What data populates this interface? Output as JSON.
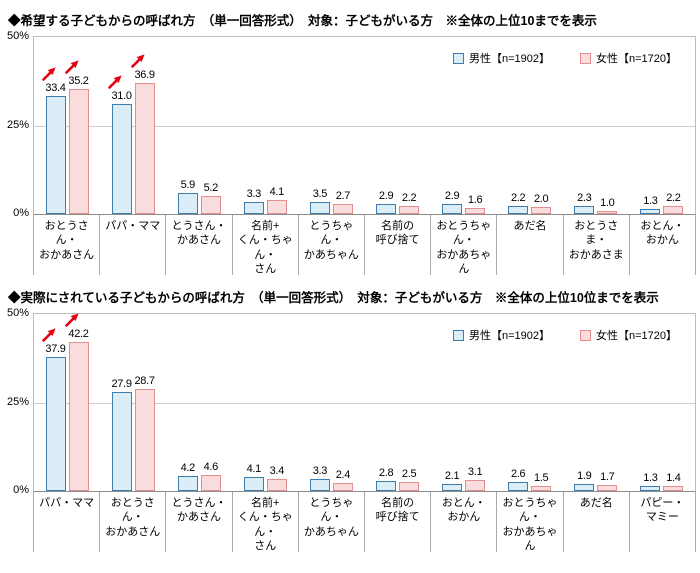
{
  "y_ticks": [
    "50%",
    "25%",
    "0%"
  ],
  "legend": {
    "male": "男性【n=1902】",
    "female": "女性【n=1720】"
  },
  "colors": {
    "male_fill": "#dbeef7",
    "male_border": "#3f7cac",
    "female_fill": "#fadcdd",
    "female_border": "#e08e90",
    "arrow": "#e60012",
    "grid": "#cdcdcd"
  },
  "chart_data": [
    {
      "type": "bar",
      "title": "◆希望する子どもからの呼ばれ方　（単一回答形式）　対象：子どもがいる方　※全体の上位10までを表示",
      "ylim": [
        0,
        50
      ],
      "grid": true,
      "legend_position": "top-right",
      "categories": [
        [
          "おとうさん・",
          "おかあさん"
        ],
        [
          "パパ・ママ"
        ],
        [
          "とうさん・",
          "かあさん"
        ],
        [
          "名前+",
          "くん・ちゃん・",
          "さん"
        ],
        [
          "とうちゃん・",
          "かあちゃん"
        ],
        [
          "名前の",
          "呼び捨て"
        ],
        [
          "おとうちゃん・",
          "おかあちゃん"
        ],
        [
          "あだ名"
        ],
        [
          "おとうさま・",
          "おかあさま"
        ],
        [
          "おとん・",
          "おかん"
        ]
      ],
      "series": [
        {
          "name": "男性【n=1902】",
          "values": [
            33.4,
            31.0,
            5.9,
            3.3,
            3.5,
            2.9,
            2.9,
            2.2,
            2.3,
            1.3
          ]
        },
        {
          "name": "女性【n=1720】",
          "values": [
            35.2,
            36.9,
            5.2,
            4.1,
            2.7,
            2.2,
            1.6,
            2.0,
            1.0,
            2.2
          ]
        }
      ],
      "arrows": [
        [
          0,
          0
        ],
        [
          1,
          0
        ],
        [
          0,
          1
        ],
        [
          1,
          1
        ]
      ]
    },
    {
      "type": "bar",
      "title": "◆実際にされている子どもからの呼ばれ方　（単一回答形式）　対象：子どもがいる方　※全体の上位10位までを表示",
      "ylim": [
        0,
        50
      ],
      "grid": true,
      "legend_position": "top-right",
      "categories": [
        [
          "パパ・ママ"
        ],
        [
          "おとうさん・",
          "おかあさん"
        ],
        [
          "とうさん・",
          "かあさん"
        ],
        [
          "名前+",
          "くん・ちゃん・",
          "さん"
        ],
        [
          "とうちゃん・",
          "かあちゃん"
        ],
        [
          "名前の",
          "呼び捨て"
        ],
        [
          "おとん・",
          "おかん"
        ],
        [
          "おとうちゃん・",
          "おかあちゃん"
        ],
        [
          "あだ名"
        ],
        [
          "パピー・",
          "マミー"
        ]
      ],
      "series": [
        {
          "name": "男性【n=1902】",
          "values": [
            37.9,
            27.9,
            4.2,
            4.1,
            3.3,
            2.8,
            2.1,
            2.6,
            1.9,
            1.3
          ]
        },
        {
          "name": "女性【n=1720】",
          "values": [
            42.2,
            28.7,
            4.6,
            3.4,
            2.4,
            2.5,
            3.1,
            1.5,
            1.7,
            1.4
          ]
        }
      ],
      "arrows": [
        [
          0,
          0
        ],
        [
          1,
          0
        ]
      ]
    }
  ]
}
